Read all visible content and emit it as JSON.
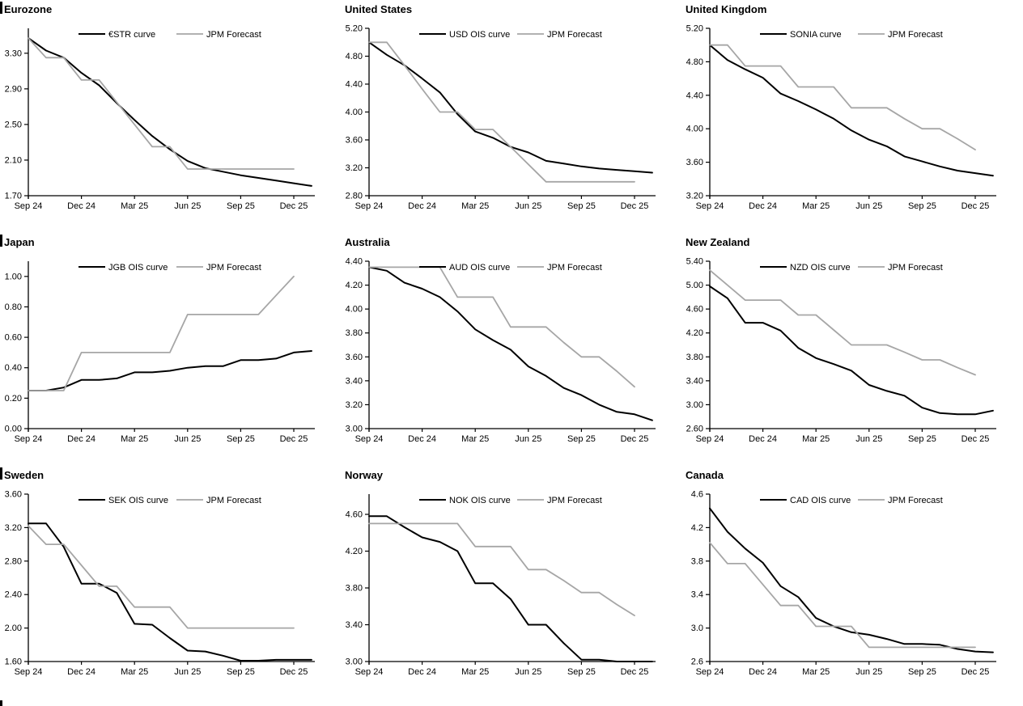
{
  "page": {
    "background": "#ffffff"
  },
  "x_axis": {
    "tick_labels": [
      "Sep 24",
      "Dec 24",
      "Mar 25",
      "Jun 25",
      "Sep 25",
      "Dec 25"
    ],
    "tick_months": [
      0,
      3,
      6,
      9,
      12,
      15
    ],
    "x_unit": "months from Sep 24"
  },
  "colors": {
    "main_line": "#000000",
    "forecast_line": "#a6a6a6"
  },
  "chart_data": [
    {
      "type": "line",
      "title": "Eurozone",
      "section_bar": true,
      "ylim": [
        1.7,
        3.58
      ],
      "ytick_values": [
        3.3,
        2.9,
        2.5,
        2.1,
        1.7
      ],
      "ytick_labels": [
        "3.30",
        "2.90",
        "2.50",
        "2.10",
        "1.70"
      ],
      "legend_position": "top",
      "grid": false,
      "series": [
        {
          "name": "€STR curve",
          "color": "#000000",
          "values": [
            3.47,
            3.33,
            3.25,
            3.08,
            2.94,
            2.74,
            2.55,
            2.37,
            2.22,
            2.09,
            2.01,
            1.97,
            1.93,
            1.9,
            1.87,
            1.84,
            1.81
          ]
        },
        {
          "name": "JPM Forecast",
          "color": "#a6a6a6",
          "values": [
            3.47,
            3.25,
            3.25,
            3.0,
            3.0,
            2.75,
            2.5,
            2.25,
            2.25,
            2.0,
            2.0,
            2.0,
            2.0,
            2.0,
            2.0,
            2.0
          ]
        }
      ]
    },
    {
      "type": "line",
      "title": "United States",
      "section_bar": false,
      "ylim": [
        2.8,
        5.2
      ],
      "ytick_values": [
        5.2,
        4.8,
        4.4,
        4.0,
        3.6,
        3.2,
        2.8
      ],
      "ytick_labels": [
        "5.20",
        "4.80",
        "4.40",
        "4.00",
        "3.60",
        "3.20",
        "2.80"
      ],
      "legend_position": "top",
      "grid": false,
      "series": [
        {
          "name": "USD OIS curve",
          "color": "#000000",
          "values": [
            5.0,
            4.82,
            4.67,
            4.48,
            4.28,
            3.97,
            3.72,
            3.63,
            3.5,
            3.42,
            3.3,
            3.26,
            3.22,
            3.19,
            3.17,
            3.15,
            3.13
          ]
        },
        {
          "name": "JPM Forecast",
          "color": "#a6a6a6",
          "values": [
            5.0,
            5.0,
            4.67,
            4.33,
            4.0,
            4.0,
            3.75,
            3.75,
            3.5,
            3.25,
            3.0,
            3.0,
            3.0,
            3.0,
            3.0,
            3.0
          ]
        }
      ]
    },
    {
      "type": "line",
      "title": "United Kingdom",
      "section_bar": false,
      "ylim": [
        3.2,
        5.2
      ],
      "ytick_values": [
        5.2,
        4.8,
        4.4,
        4.0,
        3.6,
        3.2
      ],
      "ytick_labels": [
        "5.20",
        "4.80",
        "4.40",
        "4.00",
        "3.60",
        "3.20"
      ],
      "legend_position": "top",
      "grid": false,
      "series": [
        {
          "name": "SONIA curve",
          "color": "#000000",
          "values": [
            5.0,
            4.82,
            4.71,
            4.61,
            4.42,
            4.33,
            4.23,
            4.12,
            3.98,
            3.87,
            3.79,
            3.67,
            3.61,
            3.55,
            3.5,
            3.47,
            3.44
          ]
        },
        {
          "name": "JPM Forecast",
          "color": "#a6a6a6",
          "values": [
            5.0,
            5.0,
            4.75,
            4.75,
            4.75,
            4.5,
            4.5,
            4.5,
            4.25,
            4.25,
            4.25,
            4.12,
            4.0,
            4.0,
            3.88,
            3.75
          ]
        }
      ]
    },
    {
      "type": "line",
      "title": "Japan",
      "section_bar": true,
      "ylim": [
        0.0,
        1.1
      ],
      "ytick_values": [
        1.0,
        0.8,
        0.6,
        0.4,
        0.2,
        0.0
      ],
      "ytick_labels": [
        "1.00",
        "0.80",
        "0.60",
        "0.40",
        "0.20",
        "0.00"
      ],
      "legend_position": "top",
      "grid": false,
      "series": [
        {
          "name": "JGB OIS curve",
          "color": "#000000",
          "values": [
            0.25,
            0.25,
            0.27,
            0.32,
            0.32,
            0.33,
            0.37,
            0.37,
            0.38,
            0.4,
            0.41,
            0.41,
            0.45,
            0.45,
            0.46,
            0.5,
            0.51
          ]
        },
        {
          "name": "JPM Forecast",
          "color": "#a6a6a6",
          "values": [
            0.25,
            0.25,
            0.25,
            0.5,
            0.5,
            0.5,
            0.5,
            0.5,
            0.5,
            0.75,
            0.75,
            0.75,
            0.75,
            0.75,
            0.875,
            1.0
          ]
        }
      ]
    },
    {
      "type": "line",
      "title": "Australia",
      "section_bar": false,
      "ylim": [
        3.0,
        4.4
      ],
      "ytick_values": [
        4.4,
        4.2,
        4.0,
        3.8,
        3.6,
        3.4,
        3.2,
        3.0
      ],
      "ytick_labels": [
        "4.40",
        "4.20",
        "4.00",
        "3.80",
        "3.60",
        "3.40",
        "3.20",
        "3.00"
      ],
      "legend_position": "top",
      "grid": false,
      "series": [
        {
          "name": "AUD OIS curve",
          "color": "#000000",
          "values": [
            4.35,
            4.32,
            4.22,
            4.17,
            4.1,
            3.98,
            3.83,
            3.74,
            3.66,
            3.52,
            3.44,
            3.34,
            3.28,
            3.2,
            3.14,
            3.12,
            3.07
          ]
        },
        {
          "name": "JPM Forecast",
          "color": "#a6a6a6",
          "values": [
            4.35,
            4.35,
            4.35,
            4.35,
            4.35,
            4.1,
            4.1,
            4.1,
            3.85,
            3.85,
            3.85,
            3.72,
            3.6,
            3.6,
            3.48,
            3.35
          ]
        }
      ]
    },
    {
      "type": "line",
      "title": "New Zealand",
      "section_bar": false,
      "ylim": [
        2.6,
        5.4
      ],
      "ytick_values": [
        5.4,
        5.0,
        4.6,
        4.2,
        3.8,
        3.4,
        3.0,
        2.6
      ],
      "ytick_labels": [
        "5.40",
        "5.00",
        "4.60",
        "4.20",
        "3.80",
        "3.40",
        "3.00",
        "2.60"
      ],
      "legend_position": "top",
      "grid": false,
      "series": [
        {
          "name": "NZD OIS curve",
          "color": "#000000",
          "values": [
            4.98,
            4.78,
            4.37,
            4.37,
            4.24,
            3.95,
            3.78,
            3.68,
            3.57,
            3.33,
            3.23,
            3.15,
            2.95,
            2.86,
            2.84,
            2.84,
            2.9
          ]
        },
        {
          "name": "JPM Forecast",
          "color": "#a6a6a6",
          "values": [
            5.25,
            5.0,
            4.75,
            4.75,
            4.75,
            4.5,
            4.5,
            4.25,
            4.0,
            4.0,
            4.0,
            3.88,
            3.75,
            3.75,
            3.62,
            3.5
          ]
        }
      ]
    },
    {
      "type": "line",
      "title": "Sweden",
      "section_bar": true,
      "ylim": [
        1.6,
        3.6
      ],
      "ytick_values": [
        3.6,
        3.2,
        2.8,
        2.4,
        2.0,
        1.6
      ],
      "ytick_labels": [
        "3.60",
        "3.20",
        "2.80",
        "2.40",
        "2.00",
        "1.60"
      ],
      "legend_position": "top",
      "grid": false,
      "series": [
        {
          "name": "SEK OIS curve",
          "color": "#000000",
          "values": [
            3.25,
            3.25,
            2.97,
            2.53,
            2.53,
            2.42,
            2.05,
            2.04,
            1.88,
            1.73,
            1.72,
            1.67,
            1.61,
            1.61,
            1.62,
            1.62,
            1.62
          ]
        },
        {
          "name": "JPM Forecast",
          "color": "#a6a6a6",
          "values": [
            3.22,
            3.0,
            3.0,
            2.75,
            2.5,
            2.5,
            2.25,
            2.25,
            2.25,
            2.0,
            2.0,
            2.0,
            2.0,
            2.0,
            2.0,
            2.0
          ]
        }
      ]
    },
    {
      "type": "line",
      "title": "Norway",
      "section_bar": false,
      "ylim": [
        3.0,
        4.82
      ],
      "ytick_values": [
        4.6,
        4.2,
        3.8,
        3.4,
        3.0
      ],
      "ytick_labels": [
        "4.60",
        "4.20",
        "3.80",
        "3.40",
        "3.00"
      ],
      "legend_position": "top",
      "grid": false,
      "series": [
        {
          "name": "NOK OIS curve",
          "color": "#000000",
          "values": [
            4.58,
            4.58,
            4.46,
            4.35,
            4.3,
            4.2,
            3.85,
            3.85,
            3.68,
            3.4,
            3.4,
            3.2,
            3.02,
            3.02,
            3.0,
            3.0,
            3.0
          ]
        },
        {
          "name": "JPM Forecast",
          "color": "#a6a6a6",
          "values": [
            4.5,
            4.5,
            4.5,
            4.5,
            4.5,
            4.5,
            4.25,
            4.25,
            4.25,
            4.0,
            4.0,
            3.88,
            3.75,
            3.75,
            3.62,
            3.5
          ]
        }
      ]
    },
    {
      "type": "line",
      "title": "Canada",
      "section_bar": false,
      "ylim": [
        2.6,
        4.6
      ],
      "ytick_values": [
        4.6,
        4.2,
        3.8,
        3.4,
        3.0,
        2.6
      ],
      "ytick_labels": [
        "4.6",
        "4.2",
        "3.8",
        "3.4",
        "3.0",
        "2.6"
      ],
      "legend_position": "top",
      "grid": false,
      "series": [
        {
          "name": "CAD OIS curve",
          "color": "#000000",
          "values": [
            4.43,
            4.15,
            3.95,
            3.78,
            3.5,
            3.37,
            3.12,
            3.02,
            2.95,
            2.92,
            2.87,
            2.81,
            2.81,
            2.8,
            2.75,
            2.72,
            2.71
          ]
        },
        {
          "name": "JPM Forecast",
          "color": "#a6a6a6",
          "values": [
            4.02,
            3.77,
            3.77,
            3.52,
            3.27,
            3.27,
            3.02,
            3.02,
            3.02,
            2.77,
            2.77,
            2.77,
            2.77,
            2.77,
            2.77,
            2.77
          ]
        }
      ]
    }
  ]
}
